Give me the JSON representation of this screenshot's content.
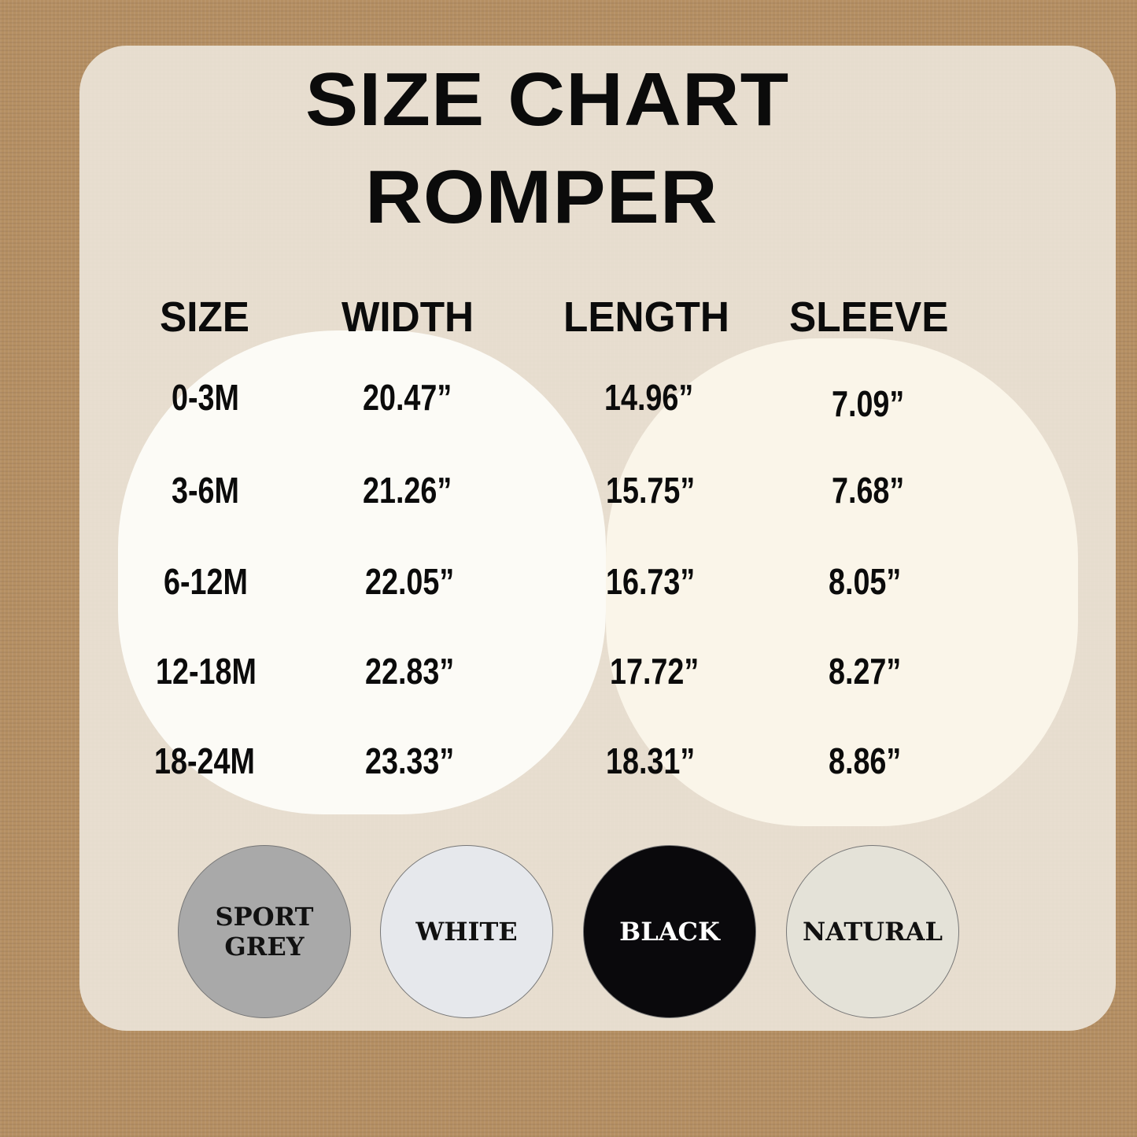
{
  "title": {
    "line1": "SIZE CHART",
    "line2": "ROMPER"
  },
  "chart_data": {
    "type": "table",
    "columns": [
      "SIZE",
      "WIDTH",
      "LENGTH",
      "SLEEVE"
    ],
    "rows": [
      [
        "0-3M",
        "20.47”",
        "14.96”",
        "7.09”"
      ],
      [
        "3-6M",
        "21.26”",
        "15.75”",
        "7.68”"
      ],
      [
        "6-12M",
        "22.05”",
        "16.73”",
        "8.05”"
      ],
      [
        "12-18M",
        "22.83”",
        "17.72”",
        "8.27”"
      ],
      [
        "18-24M",
        "23.33”",
        "18.31”",
        "8.86”"
      ]
    ]
  },
  "colors": [
    {
      "label": "SPORT GREY",
      "line1": "SPORT",
      "line2": "GREY",
      "hex": "#a9a9a9",
      "text": "#111111"
    },
    {
      "label": "WHITE",
      "hex": "#e6e8ec",
      "text": "#111111"
    },
    {
      "label": "BLACK",
      "hex": "#0a090c",
      "text": "#ffffff"
    },
    {
      "label": "NATURAL",
      "hex": "#e4e2d8",
      "text": "#111111"
    }
  ]
}
